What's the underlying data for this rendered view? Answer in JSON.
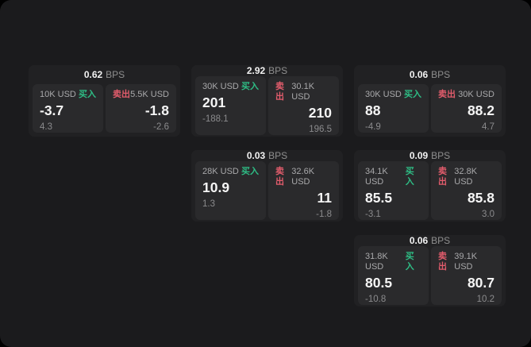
{
  "colors": {
    "buy_accent": "#2ebd85",
    "sell_accent": "#e25c6c",
    "surface_bg": "#1b1b1d",
    "card_bg": "#212123",
    "panel_bg": "#2a2a2c"
  },
  "bps_unit_label": "BPS",
  "cards": [
    {
      "col": 1,
      "row": 1,
      "bps": "0.62",
      "buy": {
        "size": "10K USD",
        "label": "买入",
        "price": "-3.7",
        "delta": "4.3"
      },
      "sell": {
        "size": "5.5K USD",
        "label": "卖出",
        "price": "-1.8",
        "delta": "-2.6"
      }
    },
    {
      "col": 2,
      "row": 1,
      "bps": "2.92",
      "buy": {
        "size": "30K USD",
        "label": "买入",
        "price": "201",
        "delta": "-188.1"
      },
      "sell": {
        "size": "30.1K USD",
        "label": "卖出",
        "price": "210",
        "delta": "196.5"
      }
    },
    {
      "col": 3,
      "row": 1,
      "bps": "0.06",
      "buy": {
        "size": "30K USD",
        "label": "买入",
        "price": "88",
        "delta": "-4.9"
      },
      "sell": {
        "size": "30K USD",
        "label": "卖出",
        "price": "88.2",
        "delta": "4.7"
      }
    },
    {
      "col": 2,
      "row": 2,
      "bps": "0.03",
      "buy": {
        "size": "28K USD",
        "label": "买入",
        "price": "10.9",
        "delta": "1.3"
      },
      "sell": {
        "size": "32.6K USD",
        "label": "卖出",
        "price": "11",
        "delta": "-1.8"
      }
    },
    {
      "col": 3,
      "row": 2,
      "bps": "0.09",
      "buy": {
        "size": "34.1K USD",
        "label": "买入",
        "price": "85.5",
        "delta": "-3.1"
      },
      "sell": {
        "size": "32.8K USD",
        "label": "卖出",
        "price": "85.8",
        "delta": "3.0"
      }
    },
    {
      "col": 3,
      "row": 3,
      "bps": "0.06",
      "buy": {
        "size": "31.8K USD",
        "label": "买入",
        "price": "80.5",
        "delta": "-10.8"
      },
      "sell": {
        "size": "39.1K USD",
        "label": "卖出",
        "price": "80.7",
        "delta": "10.2"
      }
    }
  ]
}
